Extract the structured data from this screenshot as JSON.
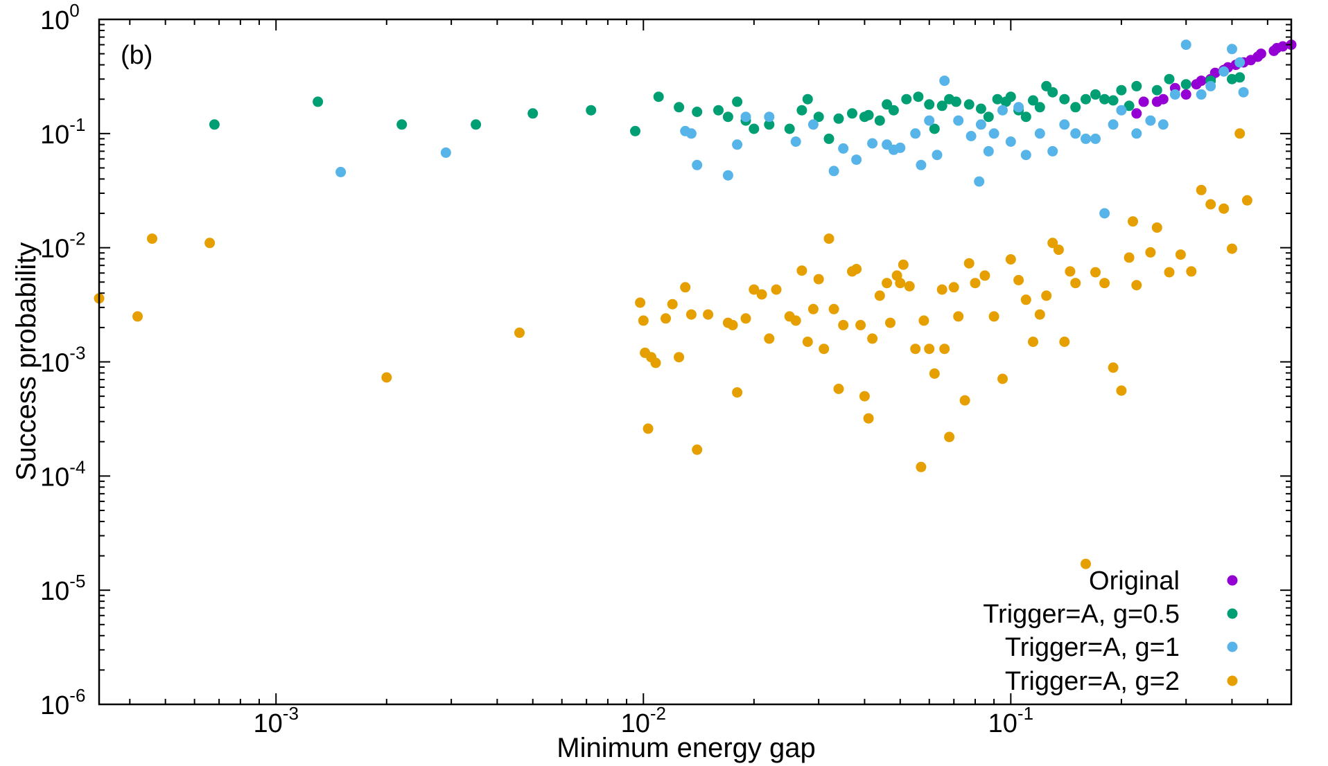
{
  "chart_data": {
    "type": "scatter",
    "panel_label": "(b)",
    "xlabel": "Minimum energy gap",
    "ylabel": "Success probability",
    "xscale": "log",
    "yscale": "log",
    "xlim": [
      0.00033,
      0.58
    ],
    "ylim": [
      1e-06,
      1
    ],
    "x_ticks": [
      {
        "value": 0.001,
        "base": "10",
        "exp": "-3"
      },
      {
        "value": 0.01,
        "base": "10",
        "exp": "-2"
      },
      {
        "value": 0.1,
        "base": "10",
        "exp": "-1"
      }
    ],
    "y_ticks": [
      {
        "value": 1,
        "base": "10",
        "exp": "0"
      },
      {
        "value": 0.1,
        "base": "10",
        "exp": "-1"
      },
      {
        "value": 0.01,
        "base": "10",
        "exp": "-2"
      },
      {
        "value": 0.001,
        "base": "10",
        "exp": "-3"
      },
      {
        "value": 0.0001,
        "base": "10",
        "exp": "-4"
      },
      {
        "value": 1e-05,
        "base": "10",
        "exp": "-5"
      },
      {
        "value": 1e-06,
        "base": "10",
        "exp": "-6"
      }
    ],
    "grid": false,
    "legend_position": "bottom-right",
    "series": [
      {
        "name": "Original",
        "color": "#9400d3",
        "points": [
          [
            0.23,
            0.19
          ],
          [
            0.22,
            0.15
          ],
          [
            0.25,
            0.19
          ],
          [
            0.26,
            0.2
          ],
          [
            0.28,
            0.25
          ],
          [
            0.3,
            0.22
          ],
          [
            0.32,
            0.27
          ],
          [
            0.33,
            0.29
          ],
          [
            0.35,
            0.3
          ],
          [
            0.36,
            0.34
          ],
          [
            0.38,
            0.36
          ],
          [
            0.39,
            0.38
          ],
          [
            0.41,
            0.4
          ],
          [
            0.43,
            0.42
          ],
          [
            0.45,
            0.44
          ],
          [
            0.47,
            0.47
          ],
          [
            0.48,
            0.5
          ],
          [
            0.52,
            0.53
          ],
          [
            0.53,
            0.56
          ],
          [
            0.55,
            0.58
          ],
          [
            0.58,
            0.6
          ]
        ]
      },
      {
        "name": "Trigger=A, g=0.5",
        "color": "#009e73",
        "points": [
          [
            0.00068,
            0.12
          ],
          [
            0.0013,
            0.19
          ],
          [
            0.0022,
            0.12
          ],
          [
            0.0035,
            0.12
          ],
          [
            0.005,
            0.15
          ],
          [
            0.0072,
            0.16
          ],
          [
            0.0095,
            0.105
          ],
          [
            0.011,
            0.21
          ],
          [
            0.0125,
            0.17
          ],
          [
            0.014,
            0.155
          ],
          [
            0.016,
            0.16
          ],
          [
            0.017,
            0.14
          ],
          [
            0.018,
            0.19
          ],
          [
            0.019,
            0.13
          ],
          [
            0.02,
            0.11
          ],
          [
            0.022,
            0.12
          ],
          [
            0.025,
            0.11
          ],
          [
            0.027,
            0.16
          ],
          [
            0.028,
            0.2
          ],
          [
            0.03,
            0.14
          ],
          [
            0.032,
            0.09
          ],
          [
            0.034,
            0.135
          ],
          [
            0.037,
            0.15
          ],
          [
            0.04,
            0.14
          ],
          [
            0.041,
            0.145
          ],
          [
            0.044,
            0.13
          ],
          [
            0.046,
            0.18
          ],
          [
            0.048,
            0.16
          ],
          [
            0.052,
            0.2
          ],
          [
            0.056,
            0.21
          ],
          [
            0.06,
            0.18
          ],
          [
            0.062,
            0.11
          ],
          [
            0.065,
            0.175
          ],
          [
            0.068,
            0.2
          ],
          [
            0.071,
            0.19
          ],
          [
            0.077,
            0.18
          ],
          [
            0.083,
            0.165
          ],
          [
            0.087,
            0.14
          ],
          [
            0.092,
            0.2
          ],
          [
            0.097,
            0.19
          ],
          [
            0.1,
            0.21
          ],
          [
            0.105,
            0.16
          ],
          [
            0.11,
            0.14
          ],
          [
            0.115,
            0.195
          ],
          [
            0.12,
            0.17
          ],
          [
            0.125,
            0.26
          ],
          [
            0.13,
            0.23
          ],
          [
            0.14,
            0.2
          ],
          [
            0.15,
            0.17
          ],
          [
            0.16,
            0.2
          ],
          [
            0.17,
            0.22
          ],
          [
            0.18,
            0.2
          ],
          [
            0.19,
            0.195
          ],
          [
            0.2,
            0.24
          ],
          [
            0.21,
            0.175
          ],
          [
            0.22,
            0.26
          ],
          [
            0.25,
            0.24
          ],
          [
            0.27,
            0.3
          ],
          [
            0.3,
            0.27
          ],
          [
            0.35,
            0.29
          ],
          [
            0.4,
            0.3
          ],
          [
            0.42,
            0.31
          ]
        ]
      },
      {
        "name": "Trigger=A, g=1",
        "color": "#56b4e9",
        "points": [
          [
            0.0015,
            0.046
          ],
          [
            0.0029,
            0.068
          ],
          [
            0.013,
            0.105
          ],
          [
            0.0135,
            0.1
          ],
          [
            0.014,
            0.053
          ],
          [
            0.017,
            0.043
          ],
          [
            0.018,
            0.08
          ],
          [
            0.019,
            0.14
          ],
          [
            0.022,
            0.14
          ],
          [
            0.026,
            0.085
          ],
          [
            0.029,
            0.12
          ],
          [
            0.033,
            0.047
          ],
          [
            0.035,
            0.074
          ],
          [
            0.038,
            0.059
          ],
          [
            0.042,
            0.082
          ],
          [
            0.046,
            0.08
          ],
          [
            0.048,
            0.072
          ],
          [
            0.05,
            0.075
          ],
          [
            0.055,
            0.1
          ],
          [
            0.057,
            0.053
          ],
          [
            0.06,
            0.13
          ],
          [
            0.063,
            0.065
          ],
          [
            0.066,
            0.29
          ],
          [
            0.072,
            0.13
          ],
          [
            0.078,
            0.095
          ],
          [
            0.082,
            0.038
          ],
          [
            0.083,
            0.12
          ],
          [
            0.087,
            0.07
          ],
          [
            0.09,
            0.1
          ],
          [
            0.095,
            0.16
          ],
          [
            0.1,
            0.085
          ],
          [
            0.105,
            0.17
          ],
          [
            0.11,
            0.065
          ],
          [
            0.12,
            0.1
          ],
          [
            0.13,
            0.07
          ],
          [
            0.14,
            0.12
          ],
          [
            0.15,
            0.1
          ],
          [
            0.16,
            0.09
          ],
          [
            0.17,
            0.09
          ],
          [
            0.18,
            0.02
          ],
          [
            0.19,
            0.12
          ],
          [
            0.2,
            0.16
          ],
          [
            0.22,
            0.1
          ],
          [
            0.24,
            0.13
          ],
          [
            0.26,
            0.12
          ],
          [
            0.28,
            0.22
          ],
          [
            0.3,
            0.6
          ],
          [
            0.33,
            0.22
          ],
          [
            0.35,
            0.26
          ],
          [
            0.38,
            0.35
          ],
          [
            0.4,
            0.55
          ],
          [
            0.42,
            0.42
          ],
          [
            0.43,
            0.23
          ]
        ]
      },
      {
        "name": "Trigger=A, g=2",
        "color": "#e69f00",
        "points": [
          [
            0.00033,
            0.0036
          ],
          [
            0.00042,
            0.0025
          ],
          [
            0.00046,
            0.012
          ],
          [
            0.00066,
            0.011
          ],
          [
            0.002,
            0.00073
          ],
          [
            0.0046,
            0.0018
          ],
          [
            0.0098,
            0.0033
          ],
          [
            0.01,
            0.0023
          ],
          [
            0.0101,
            0.0012
          ],
          [
            0.0103,
            0.00026
          ],
          [
            0.0105,
            0.0011
          ],
          [
            0.0108,
            0.00098
          ],
          [
            0.0115,
            0.0024
          ],
          [
            0.012,
            0.0032
          ],
          [
            0.0125,
            0.0011
          ],
          [
            0.013,
            0.0045
          ],
          [
            0.0135,
            0.0026
          ],
          [
            0.014,
            0.00017
          ],
          [
            0.015,
            0.0026
          ],
          [
            0.017,
            0.0022
          ],
          [
            0.0175,
            0.0021
          ],
          [
            0.018,
            0.00054
          ],
          [
            0.019,
            0.0024
          ],
          [
            0.02,
            0.0043
          ],
          [
            0.021,
            0.0039
          ],
          [
            0.022,
            0.0016
          ],
          [
            0.023,
            0.0043
          ],
          [
            0.025,
            0.0025
          ],
          [
            0.026,
            0.0023
          ],
          [
            0.027,
            0.0063
          ],
          [
            0.028,
            0.0015
          ],
          [
            0.029,
            0.0029
          ],
          [
            0.03,
            0.0053
          ],
          [
            0.031,
            0.0013
          ],
          [
            0.032,
            0.012
          ],
          [
            0.033,
            0.0029
          ],
          [
            0.034,
            0.00058
          ],
          [
            0.035,
            0.0021
          ],
          [
            0.037,
            0.0062
          ],
          [
            0.038,
            0.0065
          ],
          [
            0.039,
            0.0021
          ],
          [
            0.04,
            0.0005
          ],
          [
            0.041,
            0.00032
          ],
          [
            0.042,
            0.0016
          ],
          [
            0.044,
            0.0038
          ],
          [
            0.046,
            0.0049
          ],
          [
            0.047,
            0.0022
          ],
          [
            0.049,
            0.0057
          ],
          [
            0.05,
            0.0049
          ],
          [
            0.051,
            0.0071
          ],
          [
            0.053,
            0.0046
          ],
          [
            0.055,
            0.0013
          ],
          [
            0.057,
            0.00012
          ],
          [
            0.058,
            0.0023
          ],
          [
            0.06,
            0.0013
          ],
          [
            0.062,
            0.00079
          ],
          [
            0.065,
            0.0043
          ],
          [
            0.066,
            0.0013
          ],
          [
            0.068,
            0.00022
          ],
          [
            0.07,
            0.0045
          ],
          [
            0.072,
            0.0025
          ],
          [
            0.075,
            0.00046
          ],
          [
            0.077,
            0.0073
          ],
          [
            0.08,
            0.0049
          ],
          [
            0.085,
            0.0057
          ],
          [
            0.09,
            0.0025
          ],
          [
            0.095,
            0.00071
          ],
          [
            0.1,
            0.0079
          ],
          [
            0.105,
            0.0052
          ],
          [
            0.11,
            0.0035
          ],
          [
            0.115,
            0.0015
          ],
          [
            0.12,
            0.0026
          ],
          [
            0.125,
            0.0038
          ],
          [
            0.13,
            0.011
          ],
          [
            0.135,
            0.0096
          ],
          [
            0.14,
            0.0015
          ],
          [
            0.145,
            0.0062
          ],
          [
            0.15,
            0.0049
          ],
          [
            0.16,
            1.7e-05
          ],
          [
            0.17,
            0.0061
          ],
          [
            0.18,
            0.0049
          ],
          [
            0.19,
            0.00089
          ],
          [
            0.2,
            0.00056
          ],
          [
            0.21,
            0.0082
          ],
          [
            0.215,
            0.017
          ],
          [
            0.22,
            0.0047
          ],
          [
            0.24,
            0.0091
          ],
          [
            0.25,
            0.015
          ],
          [
            0.27,
            0.0061
          ],
          [
            0.29,
            0.0087
          ],
          [
            0.31,
            0.0062
          ],
          [
            0.33,
            0.032
          ],
          [
            0.35,
            0.024
          ],
          [
            0.38,
            0.022
          ],
          [
            0.4,
            0.0098
          ],
          [
            0.42,
            0.1
          ],
          [
            0.44,
            0.026
          ]
        ]
      }
    ]
  }
}
